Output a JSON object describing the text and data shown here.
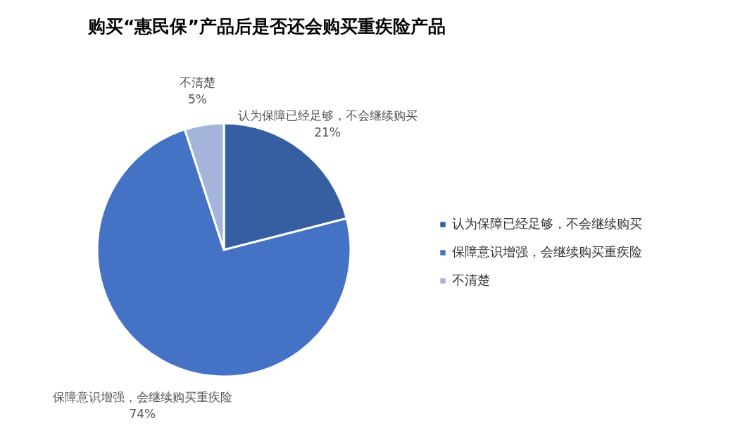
{
  "chart_data": {
    "type": "pie",
    "title": "购买“惠民保”产品后是否还会购买重疾险产品",
    "categories": [
      "认为保障已经足够，不会继续购买",
      "保障意识增强，会继续购买重疾险",
      "不清楚"
    ],
    "values": [
      21,
      74,
      5
    ],
    "value_labels": [
      "21%",
      "74%",
      "5%"
    ],
    "colors": [
      "#365fa3",
      "#4472c4",
      "#a5b4db"
    ],
    "legend": "right"
  }
}
